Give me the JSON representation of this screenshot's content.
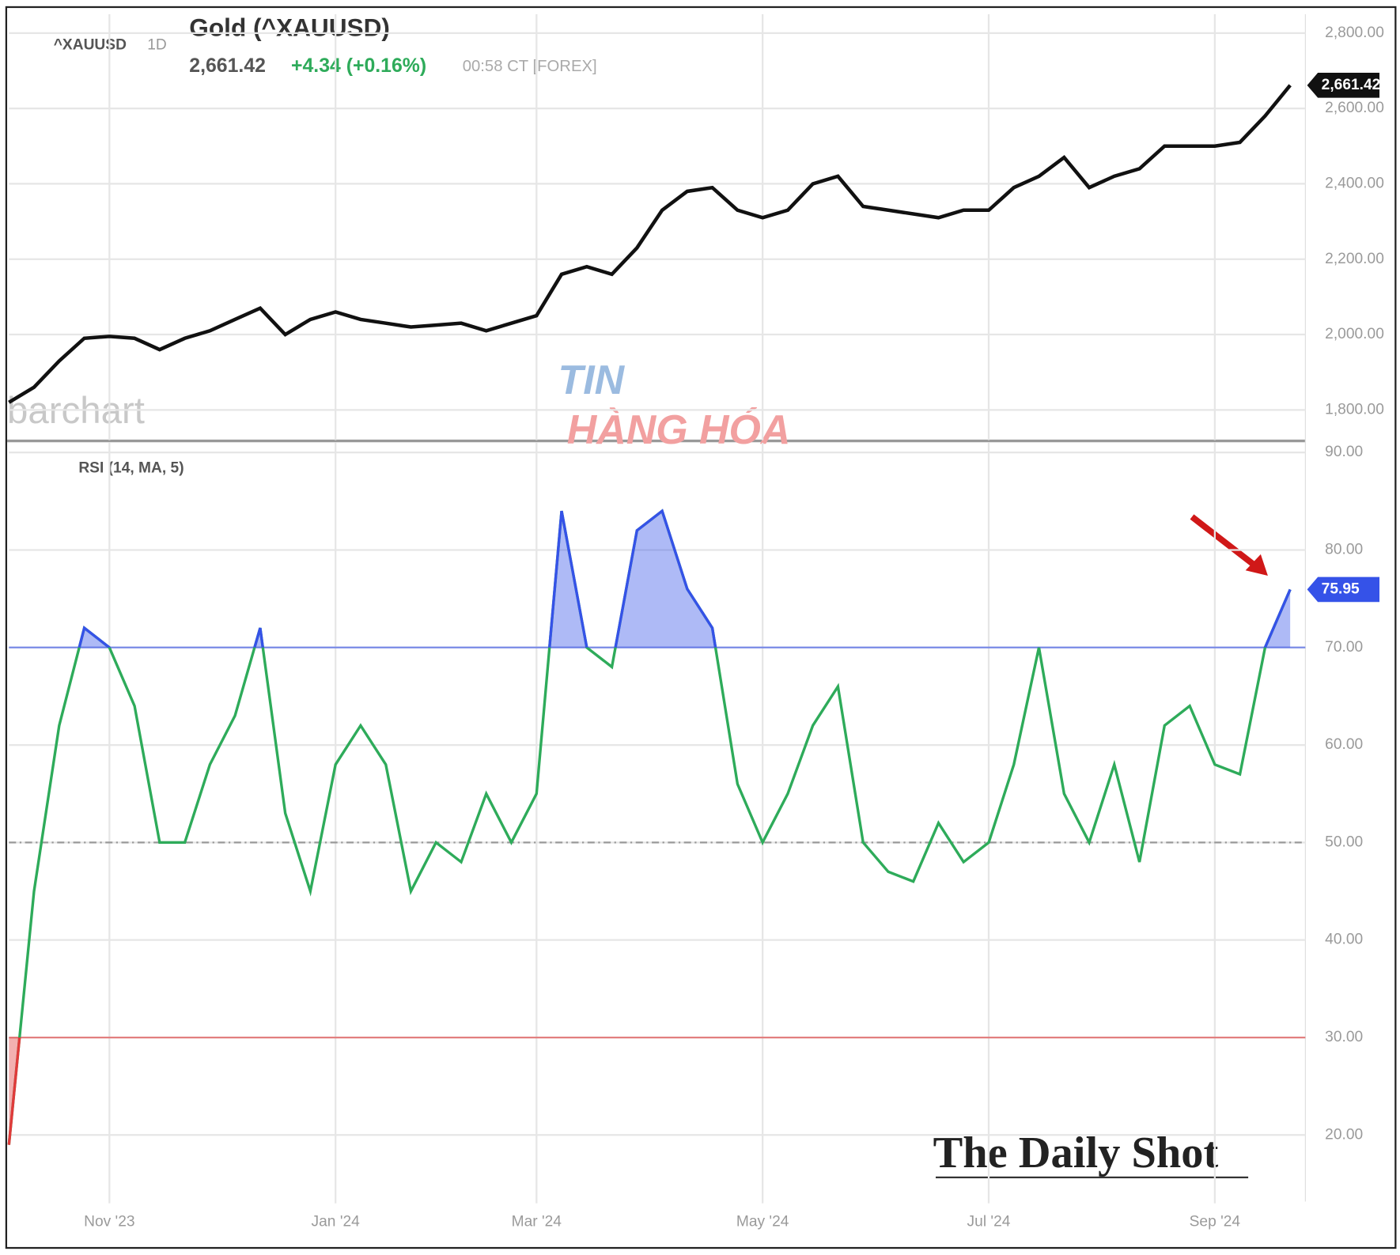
{
  "header": {
    "symbol": "^XAUUSD",
    "interval": "1D",
    "title": "Gold (^XAUUSD)",
    "price": "2,661.42",
    "change": "+4.34 (+0.16%)",
    "time": "00:58 CT [FOREX]",
    "brand": "barchart",
    "source": "The Daily Shot",
    "watermark_top": "TIN",
    "watermark_bottom": "HÀNG HÓA"
  },
  "chart_data": [
    {
      "type": "line",
      "name": "Gold",
      "color": "#111111",
      "values": [
        1820,
        1860,
        1930,
        1990,
        1995,
        1990,
        1960,
        1990,
        2010,
        2040,
        2070,
        2000,
        2040,
        2060,
        2040,
        2030,
        2020,
        2025,
        2030,
        2010,
        2030,
        2050,
        2160,
        2180,
        2160,
        2230,
        2330,
        2380,
        2390,
        2330,
        2310,
        2330,
        2400,
        2420,
        2340,
        2330,
        2320,
        2310,
        2330,
        2330,
        2390,
        2420,
        2470,
        2390,
        2420,
        2440,
        2500,
        2500,
        2500,
        2510,
        2580,
        2661.42
      ],
      "value_labels": [
        null,
        null,
        null,
        null,
        null,
        null,
        null,
        null,
        null,
        null,
        null,
        null,
        null,
        null,
        null,
        null,
        null,
        null,
        null,
        null,
        null,
        null,
        null,
        null,
        null,
        null,
        null,
        null,
        null,
        null,
        null,
        null,
        null,
        null,
        null,
        null,
        null,
        null,
        null,
        null,
        null,
        null,
        null,
        null,
        null,
        null,
        null,
        null,
        null,
        null,
        null,
        "2,661.42"
      ],
      "ylim": [
        1720,
        2850
      ],
      "yticks": [
        {
          "value": 1800,
          "label": "1,800.00"
        },
        {
          "value": 2000,
          "label": "2,000.00"
        },
        {
          "value": 2200,
          "label": "2,200.00"
        },
        {
          "value": 2400,
          "label": "2,400.00"
        },
        {
          "value": 2600,
          "label": "2,600.00"
        },
        {
          "value": 2800,
          "label": "2,800.00"
        }
      ],
      "grid": true
    },
    {
      "type": "line",
      "name": "RSI (14, MA, 5)",
      "color": "#2eab5a",
      "overbought_color": "#3552e8",
      "oversold_color": "#e03a3a",
      "categories": [
        null,
        null,
        null,
        null,
        "Nov '23",
        null,
        null,
        null,
        null,
        null,
        null,
        null,
        null,
        "Jan '24",
        null,
        null,
        null,
        null,
        null,
        null,
        null,
        "Mar '24",
        null,
        null,
        null,
        null,
        null,
        null,
        null,
        null,
        "May '24",
        null,
        null,
        null,
        null,
        null,
        null,
        null,
        null,
        "Jul '24",
        null,
        null,
        null,
        null,
        null,
        null,
        null,
        null,
        "Sep '24",
        null,
        null,
        null
      ],
      "values": [
        19,
        45,
        62,
        72,
        70,
        64,
        50,
        50,
        58,
        63,
        72,
        53,
        45,
        58,
        62,
        58,
        45,
        50,
        48,
        55,
        50,
        55,
        84,
        70,
        68,
        82,
        84,
        76,
        72,
        56,
        50,
        55,
        62,
        66,
        50,
        47,
        46,
        52,
        48,
        50,
        58,
        70,
        55,
        50,
        58,
        48,
        62,
        64,
        58,
        57,
        70,
        75.95
      ],
      "levels": {
        "overbought": 70,
        "middle": 50,
        "oversold": 30
      },
      "ylim": [
        13,
        91
      ],
      "yticks": [
        {
          "value": 20,
          "label": "20.00"
        },
        {
          "value": 30,
          "label": "30.00"
        },
        {
          "value": 40,
          "label": "40.00"
        },
        {
          "value": 50,
          "label": "50.00"
        },
        {
          "value": 60,
          "label": "60.00"
        },
        {
          "value": 70,
          "label": "70.00"
        },
        {
          "value": 80,
          "label": "80.00"
        },
        {
          "value": 90,
          "label": "90.00"
        }
      ],
      "grid": true
    }
  ]
}
